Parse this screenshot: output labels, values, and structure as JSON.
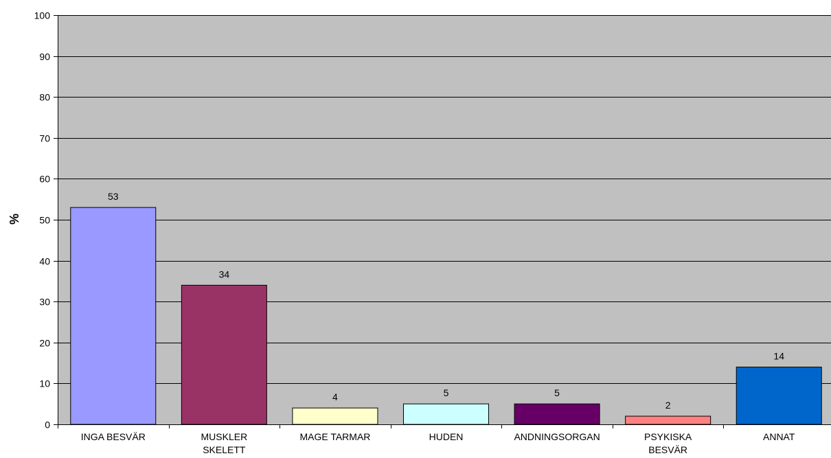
{
  "chart_data": {
    "type": "bar",
    "title": "",
    "xlabel": "",
    "ylabel": "%",
    "ylim": [
      0,
      100
    ],
    "yticks": [
      0,
      10,
      20,
      30,
      40,
      50,
      60,
      70,
      80,
      90,
      100
    ],
    "grid": true,
    "legend": "none",
    "plot_background": "#c0c0c0",
    "categories": [
      [
        "INGA BESVÄR"
      ],
      [
        "MUSKLER",
        "SKELETT"
      ],
      [
        "MAGE TARMAR"
      ],
      [
        "HUDEN"
      ],
      [
        "ANDNINGSORGAN"
      ],
      [
        "PSYKISKA",
        "BESVÄR"
      ],
      [
        "ANNAT"
      ]
    ],
    "values": [
      53,
      34,
      4,
      5,
      5,
      2,
      14
    ],
    "colors": [
      "#9999ff",
      "#993366",
      "#ffffcc",
      "#ccffff",
      "#660066",
      "#ff8080",
      "#0066cc"
    ]
  }
}
